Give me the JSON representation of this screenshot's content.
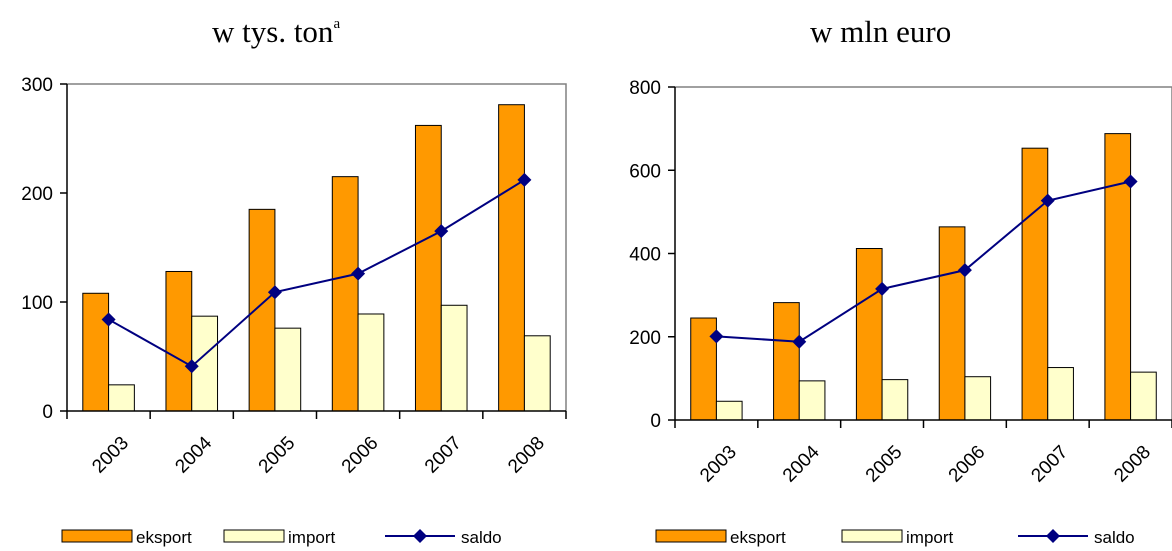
{
  "charts": [
    {
      "title_main": "w tys. ton",
      "title_sup": "a"
    },
    {
      "title_main": "w mln euro",
      "title_sup": ""
    }
  ],
  "chart_data": [
    {
      "type": "bar",
      "title": "w tys. tonᵃ",
      "categories": [
        "2003",
        "2004",
        "2005",
        "2006",
        "2007",
        "2008"
      ],
      "series": [
        {
          "name": "eksport",
          "kind": "bar",
          "color": "#ff9900",
          "values": [
            108,
            128,
            185,
            215,
            262,
            281
          ]
        },
        {
          "name": "import",
          "kind": "bar",
          "color": "#ffffcc",
          "values": [
            24,
            87,
            76,
            89,
            97,
            69
          ]
        },
        {
          "name": "saldo",
          "kind": "line",
          "color": "#000080",
          "values": [
            84,
            41,
            109,
            126,
            165,
            212
          ]
        }
      ],
      "ylim": [
        0,
        300
      ],
      "yticks": [
        0,
        100,
        200,
        300
      ],
      "grid": false,
      "legend_position": "bottom"
    },
    {
      "type": "bar",
      "title": "w mln euro",
      "categories": [
        "2003",
        "2004",
        "2005",
        "2006",
        "2007",
        "2008"
      ],
      "series": [
        {
          "name": "eksport",
          "kind": "bar",
          "color": "#ff9900",
          "values": [
            245,
            282,
            412,
            464,
            653,
            688
          ]
        },
        {
          "name": "import",
          "kind": "bar",
          "color": "#ffffcc",
          "values": [
            45,
            94,
            97,
            104,
            126,
            115
          ]
        },
        {
          "name": "saldo",
          "kind": "line",
          "color": "#000080",
          "values": [
            201,
            188,
            315,
            360,
            527,
            573
          ]
        }
      ],
      "ylim": [
        0,
        800
      ],
      "yticks": [
        0,
        200,
        400,
        600,
        800
      ],
      "grid": false,
      "legend_position": "bottom"
    }
  ]
}
